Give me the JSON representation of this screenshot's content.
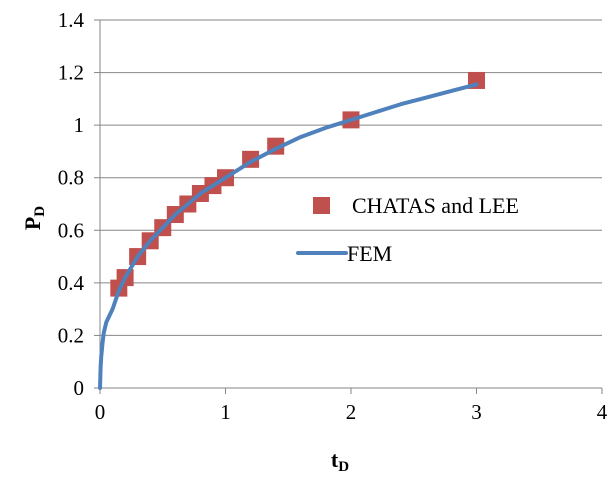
{
  "chart_data": {
    "type": "scatter",
    "xlabel": "t",
    "xlabel_sub": "D",
    "ylabel": "P",
    "ylabel_sub": "D",
    "xlim": [
      0,
      4
    ],
    "ylim": [
      0,
      1.4
    ],
    "x_ticks": [
      0,
      1,
      2,
      3,
      4
    ],
    "y_ticks": [
      0,
      0.2,
      0.4,
      0.6,
      0.8,
      1.0,
      1.2,
      1.4
    ],
    "x_tick_labels": [
      "0",
      "1",
      "2",
      "3",
      "4"
    ],
    "y_tick_labels": [
      "0",
      "0.2",
      "0.4",
      "0.6",
      "0.8",
      "1",
      "1.2",
      "1.4"
    ],
    "grid": "horizontal",
    "legend_position": "right",
    "series": [
      {
        "name": "CHATAS and LEE",
        "kind": "markers",
        "marker": "square",
        "color": "#c0504d",
        "x": [
          0.15,
          0.2,
          0.3,
          0.4,
          0.5,
          0.6,
          0.7,
          0.8,
          0.9,
          1.0,
          1.2,
          1.4,
          2.0,
          3.0
        ],
        "y": [
          0.38,
          0.42,
          0.5,
          0.56,
          0.61,
          0.66,
          0.7,
          0.74,
          0.77,
          0.8,
          0.87,
          0.92,
          1.02,
          1.17
        ]
      },
      {
        "name": "FEM",
        "kind": "line",
        "color": "#4f81bd",
        "x": [
          0,
          0.005,
          0.01,
          0.02,
          0.03,
          0.05,
          0.08,
          0.1,
          0.15,
          0.2,
          0.3,
          0.4,
          0.5,
          0.6,
          0.7,
          0.8,
          0.9,
          1.0,
          1.2,
          1.4,
          1.6,
          1.8,
          2.0,
          2.2,
          2.4,
          2.6,
          2.8,
          3.0
        ],
        "y": [
          0,
          0.08,
          0.12,
          0.17,
          0.21,
          0.25,
          0.28,
          0.3,
          0.37,
          0.42,
          0.5,
          0.56,
          0.61,
          0.66,
          0.7,
          0.74,
          0.77,
          0.8,
          0.86,
          0.91,
          0.955,
          0.99,
          1.02,
          1.05,
          1.08,
          1.105,
          1.13,
          1.155
        ]
      }
    ]
  }
}
